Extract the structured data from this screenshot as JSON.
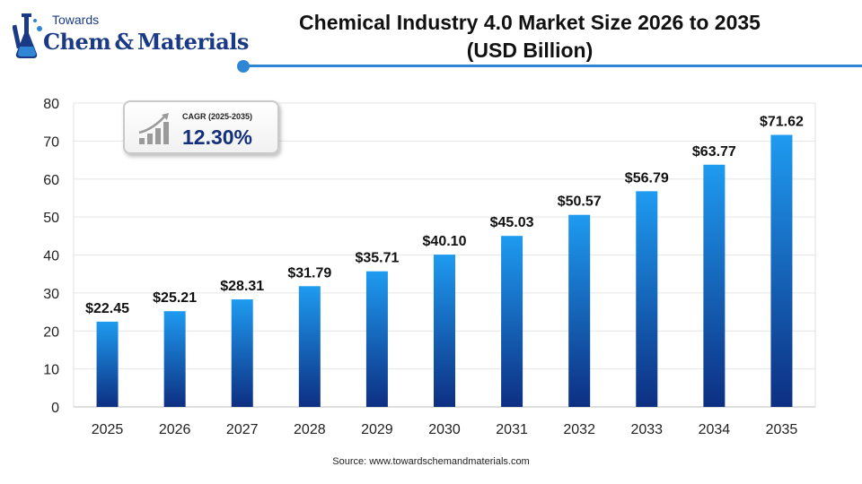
{
  "logo": {
    "top_text": "Towards",
    "main_text": "Chem & Materials",
    "icon": "flask-icon"
  },
  "title_lines": [
    "Chemical Industry 4.0 Market Size 2026 to 2035",
    "(USD Billion)"
  ],
  "cagr": {
    "label": "CAGR (2025-2035)",
    "value": "12.30%",
    "icon": "growth-chart-icon"
  },
  "source": "Source: www.towardschemandmaterials.com",
  "colors": {
    "bar_top": "#1e9bf0",
    "bar_bottom": "#0d2f82",
    "accent": "#2f86d4",
    "grid": "#e6e6e6"
  },
  "chart_data": {
    "type": "bar",
    "title": "Chemical Industry 4.0 Market Size 2026 to 2035 (USD Billion)",
    "categories": [
      "2025",
      "2026",
      "2027",
      "2028",
      "2029",
      "2030",
      "2031",
      "2032",
      "2033",
      "2034",
      "2035"
    ],
    "values": [
      22.45,
      25.21,
      28.31,
      31.79,
      35.71,
      40.1,
      45.03,
      50.57,
      56.79,
      63.77,
      71.62
    ],
    "data_labels": [
      "$22.45",
      "$25.21",
      "$28.31",
      "$31.79",
      "$35.71",
      "$40.10",
      "$45.03",
      "$50.57",
      "$56.79",
      "$63.77",
      "$71.62"
    ],
    "ylim": [
      0,
      80
    ],
    "yticks": [
      0,
      10,
      20,
      30,
      40,
      50,
      60,
      70,
      80
    ],
    "grid": true,
    "xlabel": "",
    "ylabel": ""
  }
}
